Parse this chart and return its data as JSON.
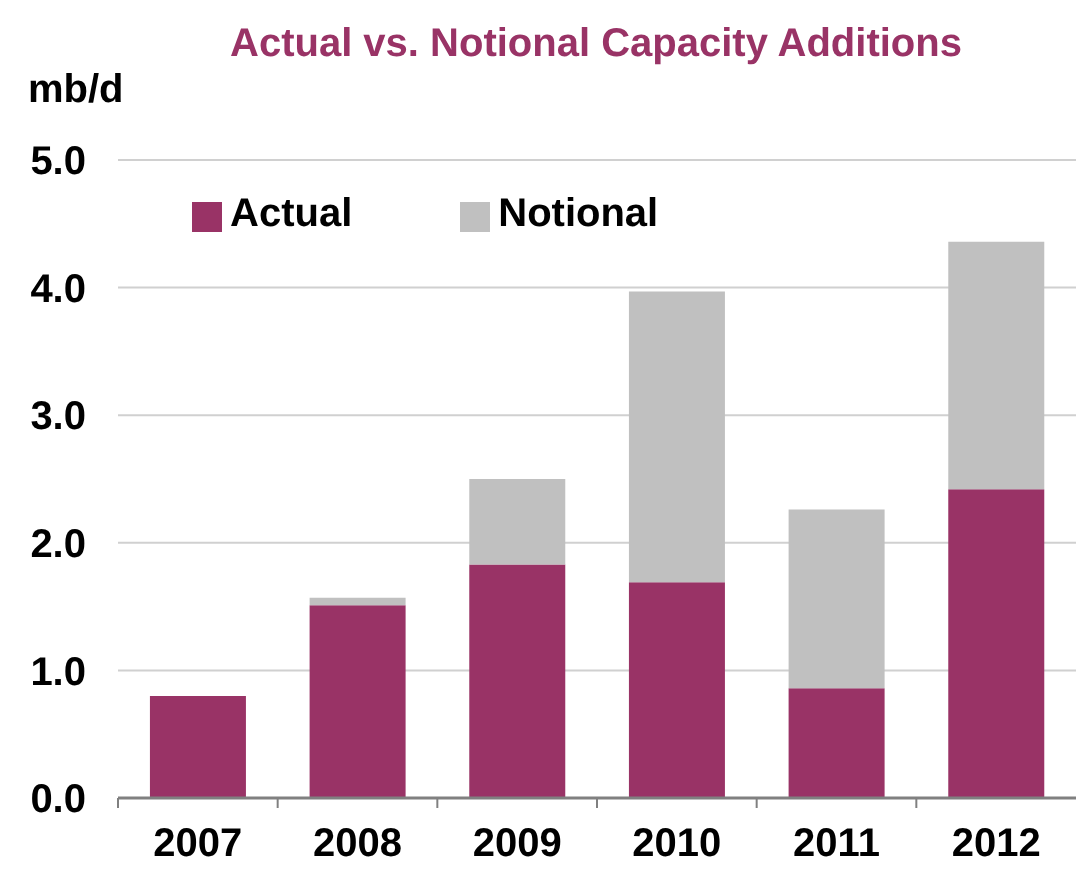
{
  "chart_data": {
    "type": "bar",
    "title": "Actual vs. Notional Capacity Additions",
    "ylabel": "mb/d",
    "categories": [
      "2007",
      "2008",
      "2009",
      "2010",
      "2011",
      "2012"
    ],
    "series": [
      {
        "name": "Actual",
        "color": "#993366",
        "values": [
          0.8,
          1.51,
          1.83,
          1.69,
          0.86,
          2.42
        ]
      },
      {
        "name": "Notional",
        "color": "#c0c0c0",
        "values": [
          null,
          0.06,
          0.67,
          2.28,
          1.4,
          1.94
        ]
      }
    ],
    "stacked": true,
    "ylim": [
      0,
      5
    ],
    "yticks": [
      {
        "value": 0,
        "label": "0.0"
      },
      {
        "value": 1,
        "label": "1.0"
      },
      {
        "value": 2,
        "label": "2.0"
      },
      {
        "value": 3,
        "label": "3.0"
      },
      {
        "value": 4,
        "label": "4.0"
      },
      {
        "value": 5,
        "label": "5.0"
      }
    ],
    "grid": "y",
    "legend": "top left"
  }
}
